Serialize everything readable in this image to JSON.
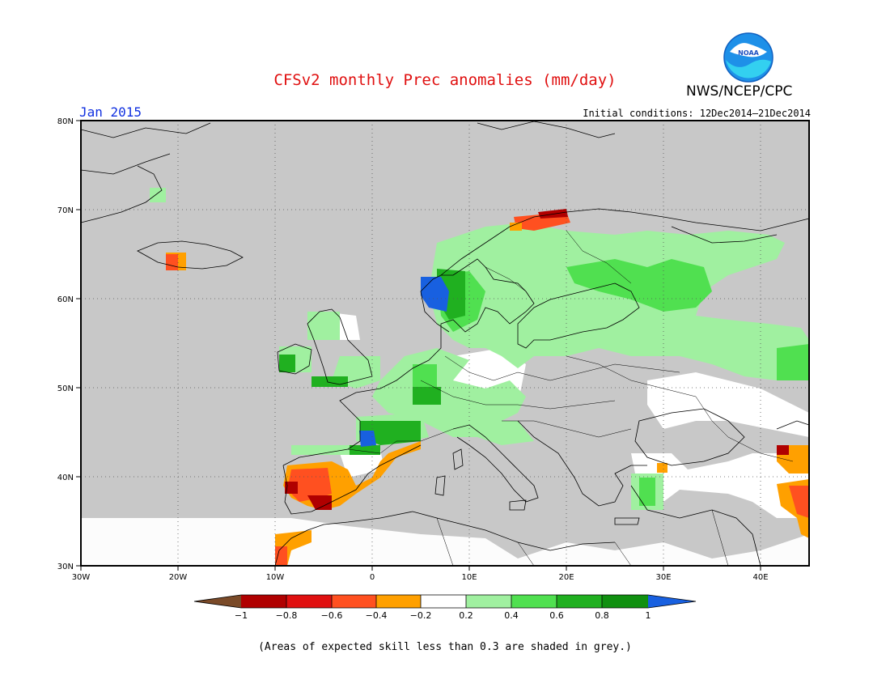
{
  "title": "CFSv2 monthly Prec anomalies (mm/day)",
  "agency": "NWS/NCEP/CPC",
  "logo_text": "NOAA",
  "month_label": "Jan 2015",
  "initial_conditions": "Initial conditions: 12Dec2014–21Dec2014",
  "footnote": "(Areas of expected skill less than 0.3 are shaded in grey.)",
  "map": {
    "projection": "cylindrical equidistant",
    "lon_range": [
      -30,
      45
    ],
    "lat_range": [
      30,
      80
    ],
    "background_color": "#c8c8c8",
    "lat_ticks": [
      "30N",
      "40N",
      "50N",
      "60N",
      "70N",
      "80N"
    ],
    "lon_ticks": [
      "30W",
      "20W",
      "10W",
      "0",
      "10E",
      "20E",
      "30E",
      "40E"
    ]
  },
  "colorbar": {
    "tick_labels": [
      "−1",
      "−0.8",
      "−0.6",
      "−0.4",
      "−0.2",
      "0.2",
      "0.4",
      "0.6",
      "0.8",
      "1"
    ],
    "colors": [
      "#7a4a28",
      "#b00000",
      "#e01010",
      "#ff5020",
      "#ffa000",
      "#ffffff",
      "#a0f0a0",
      "#50e050",
      "#20b020",
      "#109010",
      "#1860e0"
    ]
  }
}
